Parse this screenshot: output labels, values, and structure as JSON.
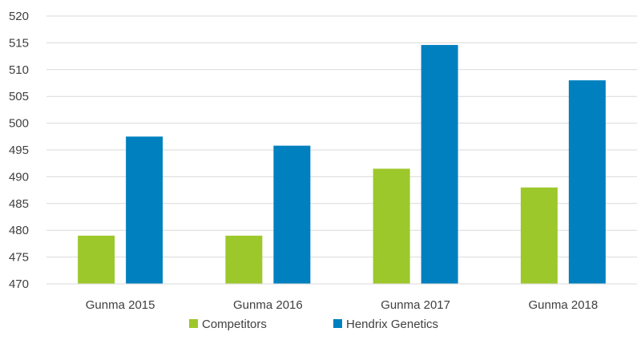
{
  "chart_data": {
    "type": "bar",
    "categories": [
      "Gunma 2015",
      "Gunma 2016",
      "Gunma 2017",
      "Gunma 2018"
    ],
    "series": [
      {
        "name": "Competitors",
        "color": "#9DC82B",
        "values": [
          479,
          479,
          491.5,
          488
        ]
      },
      {
        "name": "Hendrix Genetics",
        "color": "#0080BF",
        "values": [
          497.5,
          495.8,
          514.6,
          508
        ]
      }
    ],
    "ylim": [
      470,
      520
    ],
    "yticks": [
      470,
      475,
      480,
      485,
      490,
      495,
      500,
      505,
      510,
      515,
      520
    ],
    "grid": true,
    "legend_position": "bottom-center",
    "title": "",
    "xlabel": "",
    "ylabel": ""
  }
}
